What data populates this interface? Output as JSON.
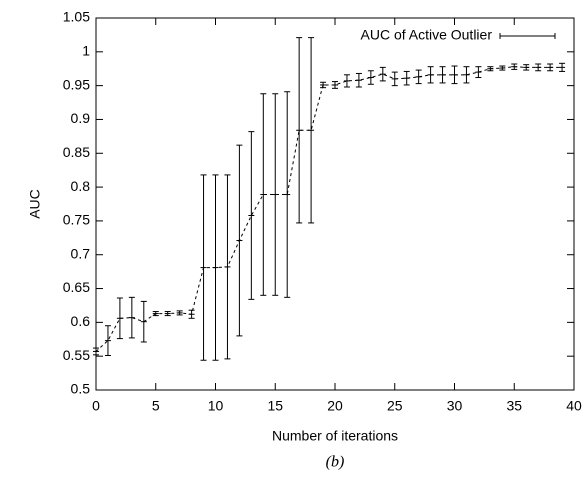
{
  "chart_data": {
    "type": "errorbar-line",
    "caption": "(b)",
    "x_label": "Number of iterations",
    "y_label": "AUC",
    "x": [
      0,
      1,
      2,
      3,
      4,
      5,
      6,
      7,
      8,
      9,
      10,
      11,
      12,
      13,
      14,
      15,
      16,
      17,
      18,
      19,
      20,
      21,
      22,
      23,
      24,
      25,
      26,
      27,
      28,
      29,
      30,
      31,
      32,
      33,
      34,
      35,
      36,
      37,
      38,
      39
    ],
    "series": [
      {
        "name": "AUC of Active Outlier",
        "color": "#000000",
        "values": [
          0.557,
          0.573,
          0.606,
          0.607,
          0.601,
          0.613,
          0.613,
          0.614,
          0.612,
          0.681,
          0.681,
          0.682,
          0.721,
          0.758,
          0.789,
          0.789,
          0.789,
          0.884,
          0.884,
          0.951,
          0.951,
          0.957,
          0.958,
          0.962,
          0.967,
          0.96,
          0.961,
          0.963,
          0.966,
          0.966,
          0.966,
          0.966,
          0.97,
          0.975,
          0.976,
          0.978,
          0.977,
          0.977,
          0.977,
          0.977
        ],
        "errors": [
          0.005,
          0.022,
          0.03,
          0.03,
          0.03,
          0.003,
          0.003,
          0.003,
          0.006,
          0.137,
          0.137,
          0.136,
          0.141,
          0.124,
          0.149,
          0.149,
          0.152,
          0.137,
          0.137,
          0.004,
          0.005,
          0.009,
          0.01,
          0.01,
          0.01,
          0.01,
          0.01,
          0.01,
          0.012,
          0.012,
          0.013,
          0.012,
          0.008,
          0.003,
          0.003,
          0.004,
          0.004,
          0.005,
          0.005,
          0.006
        ]
      }
    ],
    "xlim": [
      0,
      40
    ],
    "xticks": [
      0,
      5,
      10,
      15,
      20,
      25,
      30,
      35,
      40
    ],
    "ylim": [
      0.5,
      1.05
    ],
    "yticks": [
      0.5,
      0.55,
      0.6,
      0.65,
      0.7,
      0.75,
      0.8,
      0.85,
      0.9,
      0.95,
      1,
      1.05
    ],
    "legend": "top-right"
  }
}
